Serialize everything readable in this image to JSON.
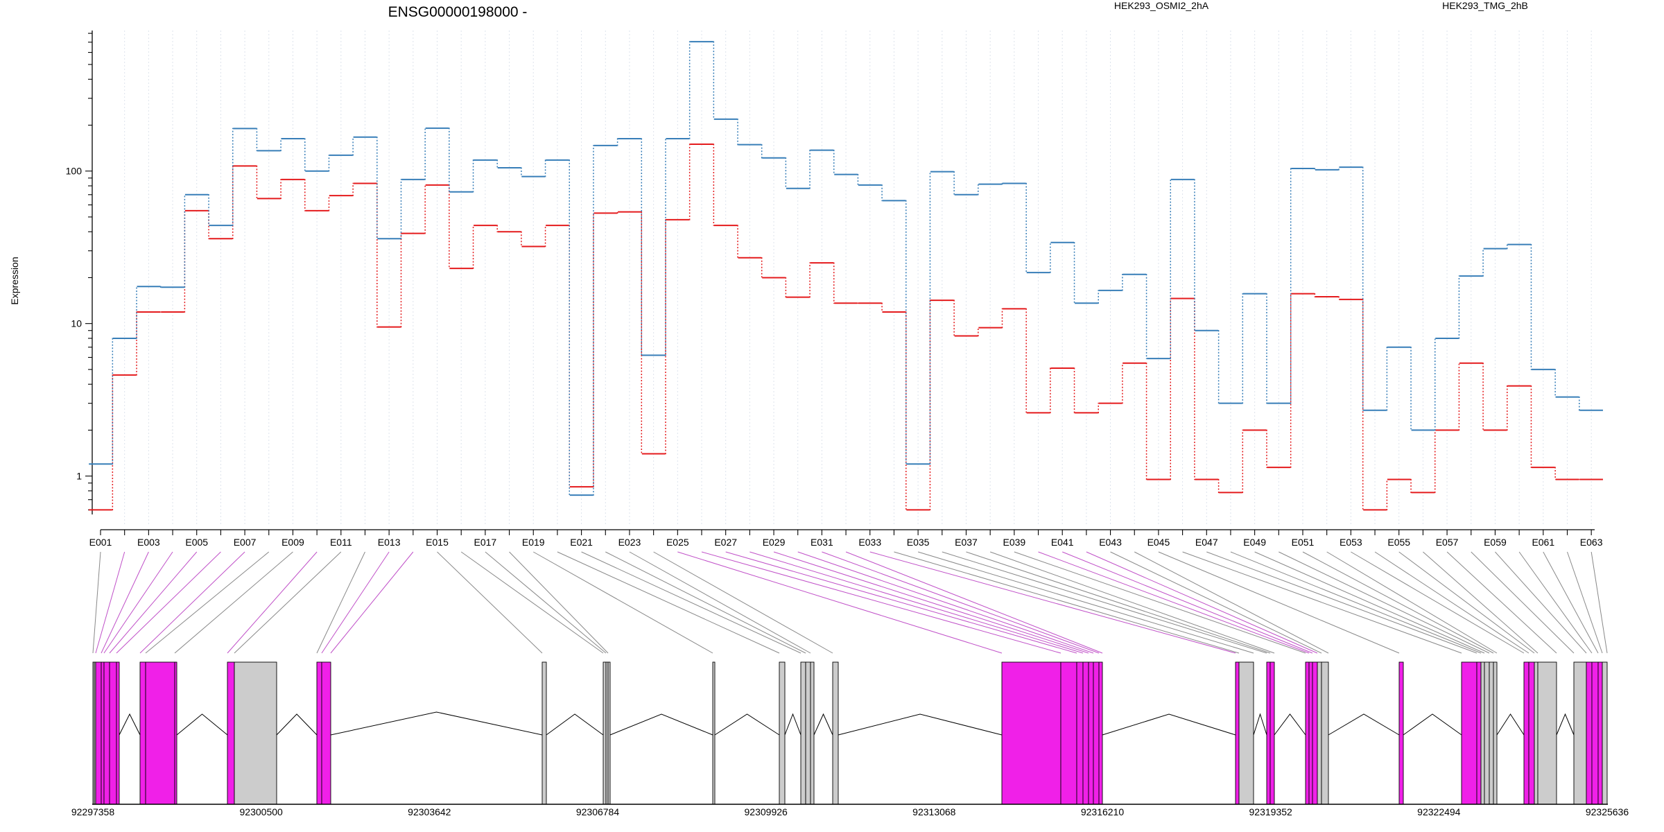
{
  "chart_data": {
    "type": "line",
    "title": "ENSG00000198000 -",
    "ylabel": "Expression",
    "xlabel": "",
    "y_scale": "log",
    "ylim": [
      0.56,
      835
    ],
    "y_ticks": [
      1,
      10,
      100
    ],
    "y_tick_labels": [
      "1",
      "10",
      "100"
    ],
    "grid": "vertical dotted lines at each exon",
    "legend_position": "top-right",
    "exons": [
      "E001",
      "E002",
      "E003",
      "E004",
      "E005",
      "E006",
      "E007",
      "E008",
      "E009",
      "E010",
      "E011",
      "E012",
      "E013",
      "E014",
      "E015",
      "E016",
      "E017",
      "E018",
      "E019",
      "E020",
      "E021",
      "E022",
      "E023",
      "E024",
      "E025",
      "E026",
      "E027",
      "E028",
      "E029",
      "E030",
      "E031",
      "E032",
      "E033",
      "E034",
      "E035",
      "E036",
      "E037",
      "E038",
      "E039",
      "E040",
      "E041",
      "E042",
      "E043",
      "E044",
      "E045",
      "E046",
      "E047",
      "E048",
      "E049",
      "E050",
      "E051",
      "E052",
      "E053",
      "E054",
      "E055",
      "E056",
      "E057",
      "E058",
      "E059",
      "E060",
      "E061",
      "E062",
      "E063"
    ],
    "exon_tick_labels": [
      "E001",
      "E003",
      "E005",
      "E007",
      "E009",
      "E011",
      "E013",
      "E015",
      "E017",
      "E019",
      "E021",
      "E023",
      "E025",
      "E027",
      "E029",
      "E031",
      "E033",
      "E035",
      "E037",
      "E039",
      "E041",
      "E043",
      "E045",
      "E047",
      "E049",
      "E051",
      "E053",
      "E055",
      "E057",
      "E059",
      "E061",
      "E063"
    ],
    "series": [
      {
        "name": "HEK293_OSMI2_2hA",
        "color": "#e41a1c",
        "values": [
          0.6,
          4.6,
          11.9,
          11.9,
          55,
          36,
          108,
          66,
          88,
          55,
          69,
          83,
          9.5,
          39,
          81,
          23,
          44,
          40,
          32,
          44,
          0.85,
          53,
          54,
          1.4,
          48,
          150,
          44,
          27,
          20,
          14.9,
          25,
          13.6,
          13.6,
          11.9,
          0.6,
          14.2,
          8.3,
          9.4,
          12.5,
          2.6,
          5.1,
          2.6,
          3,
          5.5,
          0.95,
          14.6,
          0.95,
          0.78,
          2,
          1.14,
          15.7,
          15,
          14.4,
          0.6,
          0.95,
          0.78,
          2,
          5.5,
          2,
          3.9,
          1.14,
          0.95,
          0.95
        ]
      },
      {
        "name": "HEK293_TMG_2hB",
        "color": "#377eb8",
        "values": [
          1.2,
          8,
          17.5,
          17.3,
          70,
          44,
          190,
          136,
          163,
          100,
          127,
          167,
          36,
          88,
          191,
          73,
          118,
          105,
          92,
          118,
          0.75,
          147,
          163,
          6.2,
          163,
          705,
          219,
          149,
          122,
          77,
          137,
          95,
          81,
          64,
          1.2,
          99,
          70,
          82,
          83,
          21.6,
          34,
          13.6,
          16.5,
          21,
          5.9,
          88,
          9,
          3,
          15.7,
          3,
          104,
          102,
          106,
          2.7,
          7,
          2,
          8,
          20.5,
          31,
          33,
          5,
          3.3,
          2.7
        ]
      }
    ],
    "genome": {
      "coordinate_ticks": [
        "92297358",
        "92300500",
        "92303642",
        "92306784",
        "92309926",
        "92313068",
        "92316210",
        "92319352",
        "92322494",
        "92325636"
      ],
      "colors": {
        "exon_highlight": "#f020e8",
        "exon_normal": "#cccccc",
        "intron_line": "#000000",
        "connector_highlight": "#c050c8",
        "connector_normal": "#888888"
      }
    }
  }
}
